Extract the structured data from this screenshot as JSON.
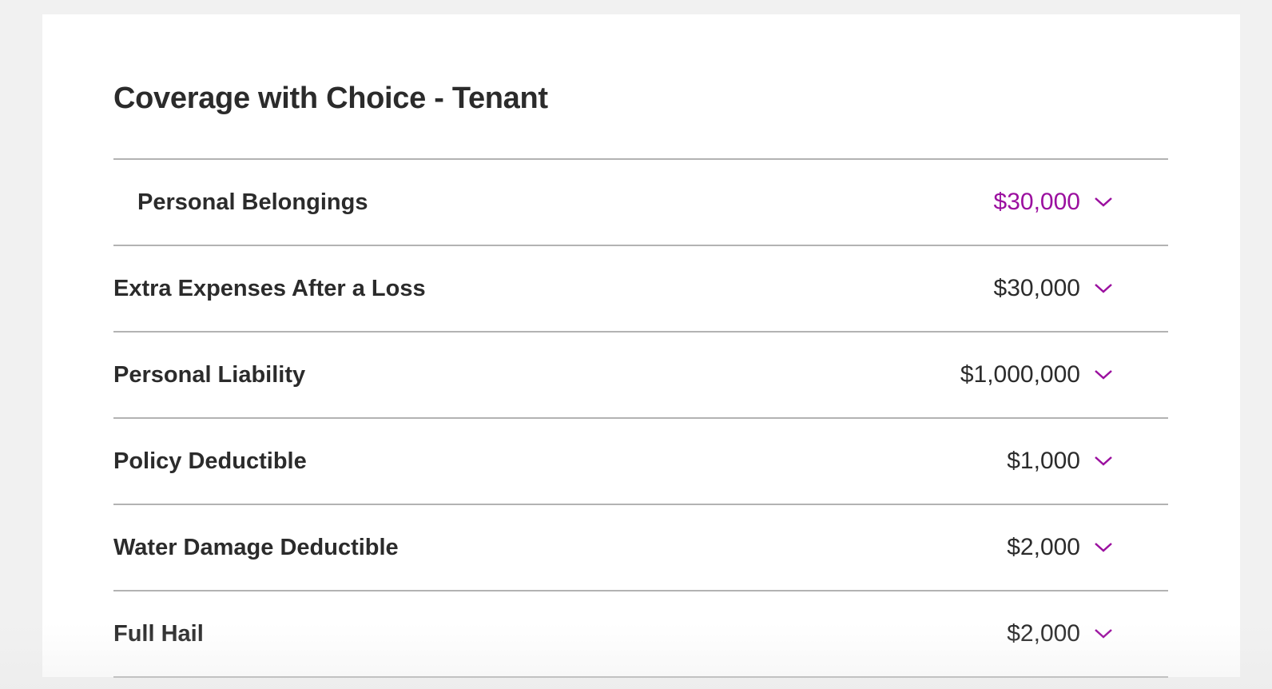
{
  "title": "Coverage with Choice - Tenant",
  "accent_color": "#9b0f9f",
  "coverages": [
    {
      "label": "Personal Belongings",
      "value": "$30,000",
      "icon": "chevron-down-icon",
      "active": true
    },
    {
      "label": "Extra Expenses After a Loss",
      "value": "$30,000",
      "icon": "chevron-down-icon"
    },
    {
      "label": "Personal Liability",
      "value": "$1,000,000",
      "icon": "chevron-down-icon"
    },
    {
      "label": "Policy Deductible",
      "value": "$1,000",
      "icon": "chevron-down-icon"
    },
    {
      "label": "Water Damage Deductible",
      "value": "$2,000",
      "icon": "chevron-down-icon"
    },
    {
      "label": "Full Hail",
      "value": "$2,000",
      "icon": "chevron-down-icon"
    }
  ]
}
